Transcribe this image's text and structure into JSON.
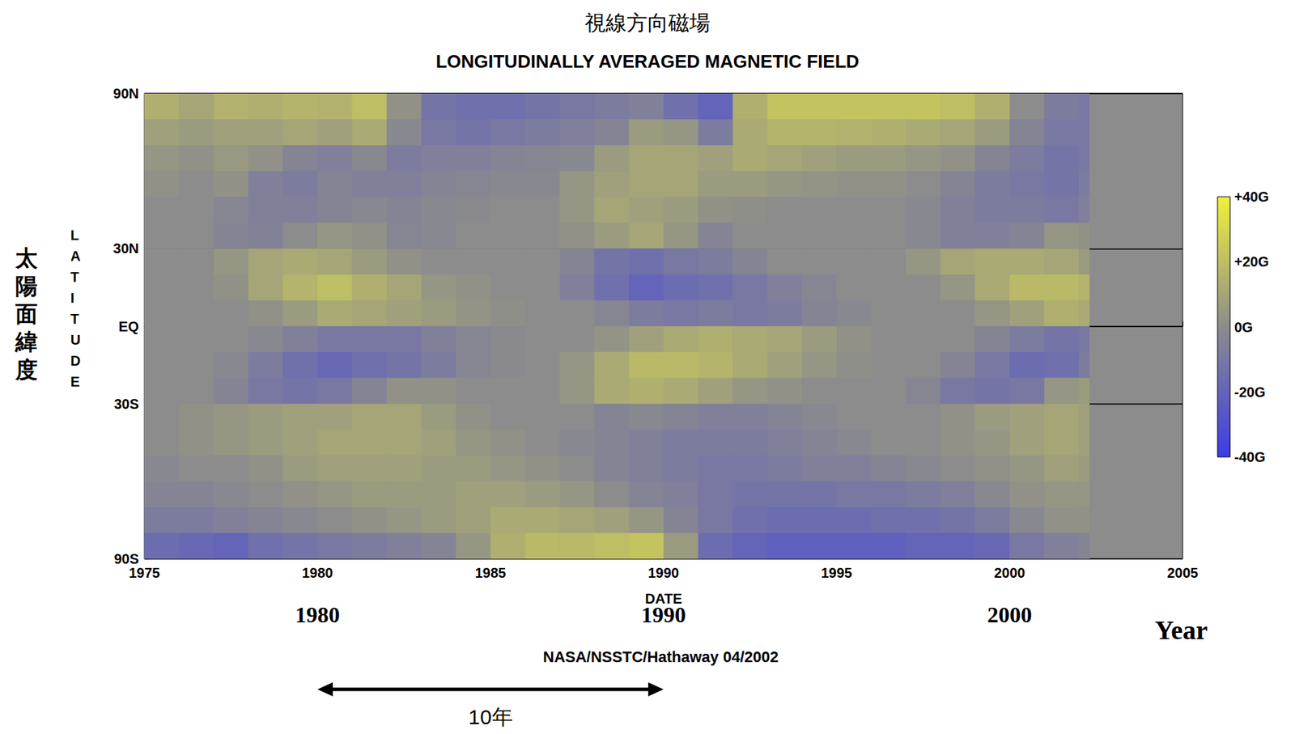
{
  "chart_data": {
    "type": "heatmap",
    "title": "視線方向磁場",
    "subtitle": "LONGITUDINALLY AVERAGED MAGNETIC FIELD",
    "x_label": "DATE",
    "y_label": "LATITUDE",
    "side_label": "太陽面緯度",
    "xlim": [
      1975,
      2005
    ],
    "xticks": [
      1975,
      1980,
      1985,
      1990,
      1995,
      2000,
      2005
    ],
    "ylim": [
      -90,
      90
    ],
    "yticks": [
      {
        "value": -90,
        "label": "90S"
      },
      {
        "value": -30,
        "label": "30S"
      },
      {
        "value": 0,
        "label": "EQ"
      },
      {
        "value": 30,
        "label": "30N"
      },
      {
        "value": 90,
        "label": "90N"
      }
    ],
    "grid": true,
    "x_bins": [
      1975,
      1976,
      1977,
      1978,
      1979,
      1980,
      1981,
      1982,
      1983,
      1984,
      1985,
      1986,
      1987,
      1988,
      1989,
      1990,
      1991,
      1992,
      1993,
      1994,
      1995,
      1996,
      1997,
      1998,
      1999,
      2000,
      2001,
      2002,
      2002.3
    ],
    "y_bins": [
      90,
      80,
      70,
      60,
      50,
      40,
      30,
      20,
      10,
      0,
      -10,
      -20,
      -30,
      -40,
      -50,
      -60,
      -70,
      -80,
      -90
    ],
    "cells": [
      [
        14,
        10,
        15,
        14,
        16,
        15,
        20,
        2,
        -12,
        -14,
        -14,
        -12,
        -10,
        -8,
        -6,
        -14,
        -20,
        14,
        22,
        22,
        22,
        22,
        22,
        20,
        14,
        0,
        -8,
        -10
      ],
      [
        8,
        6,
        8,
        8,
        10,
        8,
        12,
        -2,
        -10,
        -12,
        -10,
        -8,
        -6,
        -4,
        6,
        4,
        -8,
        12,
        16,
        16,
        15,
        14,
        12,
        10,
        6,
        -4,
        -10,
        -10
      ],
      [
        4,
        2,
        5,
        2,
        -4,
        -6,
        -2,
        -8,
        -6,
        -6,
        -4,
        -3,
        -2,
        6,
        10,
        10,
        8,
        12,
        10,
        8,
        6,
        6,
        4,
        2,
        -4,
        -8,
        -12,
        -10
      ],
      [
        2,
        0,
        2,
        -6,
        -8,
        -4,
        -6,
        -6,
        -4,
        -3,
        -2,
        -2,
        4,
        8,
        10,
        10,
        6,
        6,
        4,
        3,
        2,
        2,
        0,
        -4,
        -8,
        -10,
        -12,
        -8
      ],
      [
        0,
        0,
        -3,
        -6,
        -6,
        -4,
        -2,
        -4,
        -2,
        -1,
        0,
        0,
        4,
        10,
        8,
        6,
        2,
        1,
        0,
        0,
        0,
        0,
        -2,
        -6,
        -8,
        -8,
        -10,
        -6
      ],
      [
        0,
        0,
        -4,
        -5,
        0,
        4,
        2,
        -3,
        -2,
        0,
        0,
        0,
        2,
        6,
        10,
        4,
        -4,
        0,
        0,
        0,
        0,
        0,
        -2,
        -6,
        -6,
        -4,
        4,
        2
      ],
      [
        0,
        0,
        4,
        10,
        12,
        10,
        6,
        2,
        0,
        0,
        0,
        0,
        -4,
        -12,
        -14,
        -10,
        -8,
        -4,
        0,
        0,
        0,
        0,
        4,
        10,
        12,
        12,
        10,
        6
      ],
      [
        0,
        0,
        2,
        10,
        16,
        20,
        14,
        10,
        4,
        2,
        0,
        0,
        -6,
        -14,
        -20,
        -16,
        -14,
        -10,
        -6,
        -3,
        0,
        0,
        0,
        4,
        12,
        18,
        18,
        16
      ],
      [
        0,
        0,
        0,
        2,
        6,
        12,
        10,
        8,
        6,
        3,
        1,
        0,
        0,
        -3,
        -8,
        -10,
        -8,
        -10,
        -8,
        -4,
        -2,
        0,
        0,
        0,
        4,
        8,
        14,
        12
      ],
      [
        0,
        0,
        0,
        -2,
        -6,
        -10,
        -10,
        -10,
        -6,
        -3,
        -1,
        0,
        0,
        3,
        8,
        12,
        14,
        12,
        10,
        6,
        2,
        0,
        0,
        0,
        -4,
        -8,
        -12,
        -10
      ],
      [
        0,
        0,
        -2,
        -8,
        -14,
        -18,
        -14,
        -12,
        -8,
        -3,
        -1,
        0,
        4,
        12,
        18,
        18,
        16,
        12,
        8,
        4,
        1,
        0,
        0,
        -4,
        -10,
        -16,
        -14,
        -8
      ],
      [
        0,
        0,
        -4,
        -10,
        -12,
        -10,
        -4,
        2,
        2,
        0,
        0,
        0,
        4,
        12,
        14,
        12,
        8,
        4,
        2,
        0,
        0,
        0,
        -3,
        -10,
        -12,
        -10,
        4,
        6
      ],
      [
        0,
        2,
        4,
        6,
        8,
        8,
        10,
        10,
        6,
        2,
        0,
        0,
        0,
        -4,
        -2,
        -4,
        -6,
        -6,
        -4,
        -2,
        0,
        0,
        0,
        2,
        6,
        8,
        10,
        8
      ],
      [
        0,
        2,
        4,
        6,
        8,
        10,
        10,
        10,
        8,
        4,
        2,
        0,
        -2,
        -4,
        -6,
        -8,
        -8,
        -8,
        -6,
        -4,
        -2,
        0,
        0,
        2,
        4,
        8,
        10,
        8
      ],
      [
        -2,
        0,
        0,
        2,
        6,
        8,
        8,
        8,
        6,
        6,
        4,
        2,
        0,
        -4,
        -6,
        -8,
        -10,
        -10,
        -8,
        -6,
        -6,
        -4,
        -2,
        0,
        2,
        4,
        8,
        6
      ],
      [
        -4,
        -4,
        -2,
        0,
        2,
        4,
        6,
        6,
        6,
        8,
        8,
        6,
        4,
        0,
        -4,
        -6,
        -10,
        -12,
        -12,
        -12,
        -10,
        -10,
        -8,
        -6,
        -2,
        2,
        4,
        4
      ],
      [
        -8,
        -8,
        -6,
        -4,
        -2,
        0,
        2,
        4,
        6,
        8,
        12,
        12,
        10,
        8,
        4,
        -4,
        -10,
        -14,
        -16,
        -16,
        -16,
        -14,
        -14,
        -12,
        -8,
        -2,
        2,
        2
      ],
      [
        -16,
        -18,
        -20,
        -14,
        -12,
        -10,
        -8,
        -6,
        -4,
        4,
        14,
        18,
        18,
        20,
        22,
        6,
        -16,
        -20,
        -22,
        -22,
        -22,
        -22,
        -20,
        -20,
        -18,
        -10,
        -6,
        -4
      ]
    ],
    "colorbar": {
      "range": [
        -40,
        40
      ],
      "ticks": [
        {
          "value": 40,
          "label": "+40G"
        },
        {
          "value": 20,
          "label": "+20G"
        },
        {
          "value": 0,
          "label": "0G"
        },
        {
          "value": -20,
          "label": "-20G"
        },
        {
          "value": -40,
          "label": "-40G"
        }
      ],
      "colors": [
        "#3c3ce6",
        "#8c8c8c",
        "#f0f03c"
      ]
    },
    "year_labels": [
      {
        "text": "1980",
        "x": 1980
      },
      {
        "text": "1990",
        "x": 1990
      },
      {
        "text": "2000",
        "x": 2000
      }
    ],
    "unit_label": "Year",
    "credit": "NASA/NSSTC/Hathaway 04/2002",
    "span": {
      "text": "10年",
      "from": 1980,
      "to": 1990
    }
  }
}
